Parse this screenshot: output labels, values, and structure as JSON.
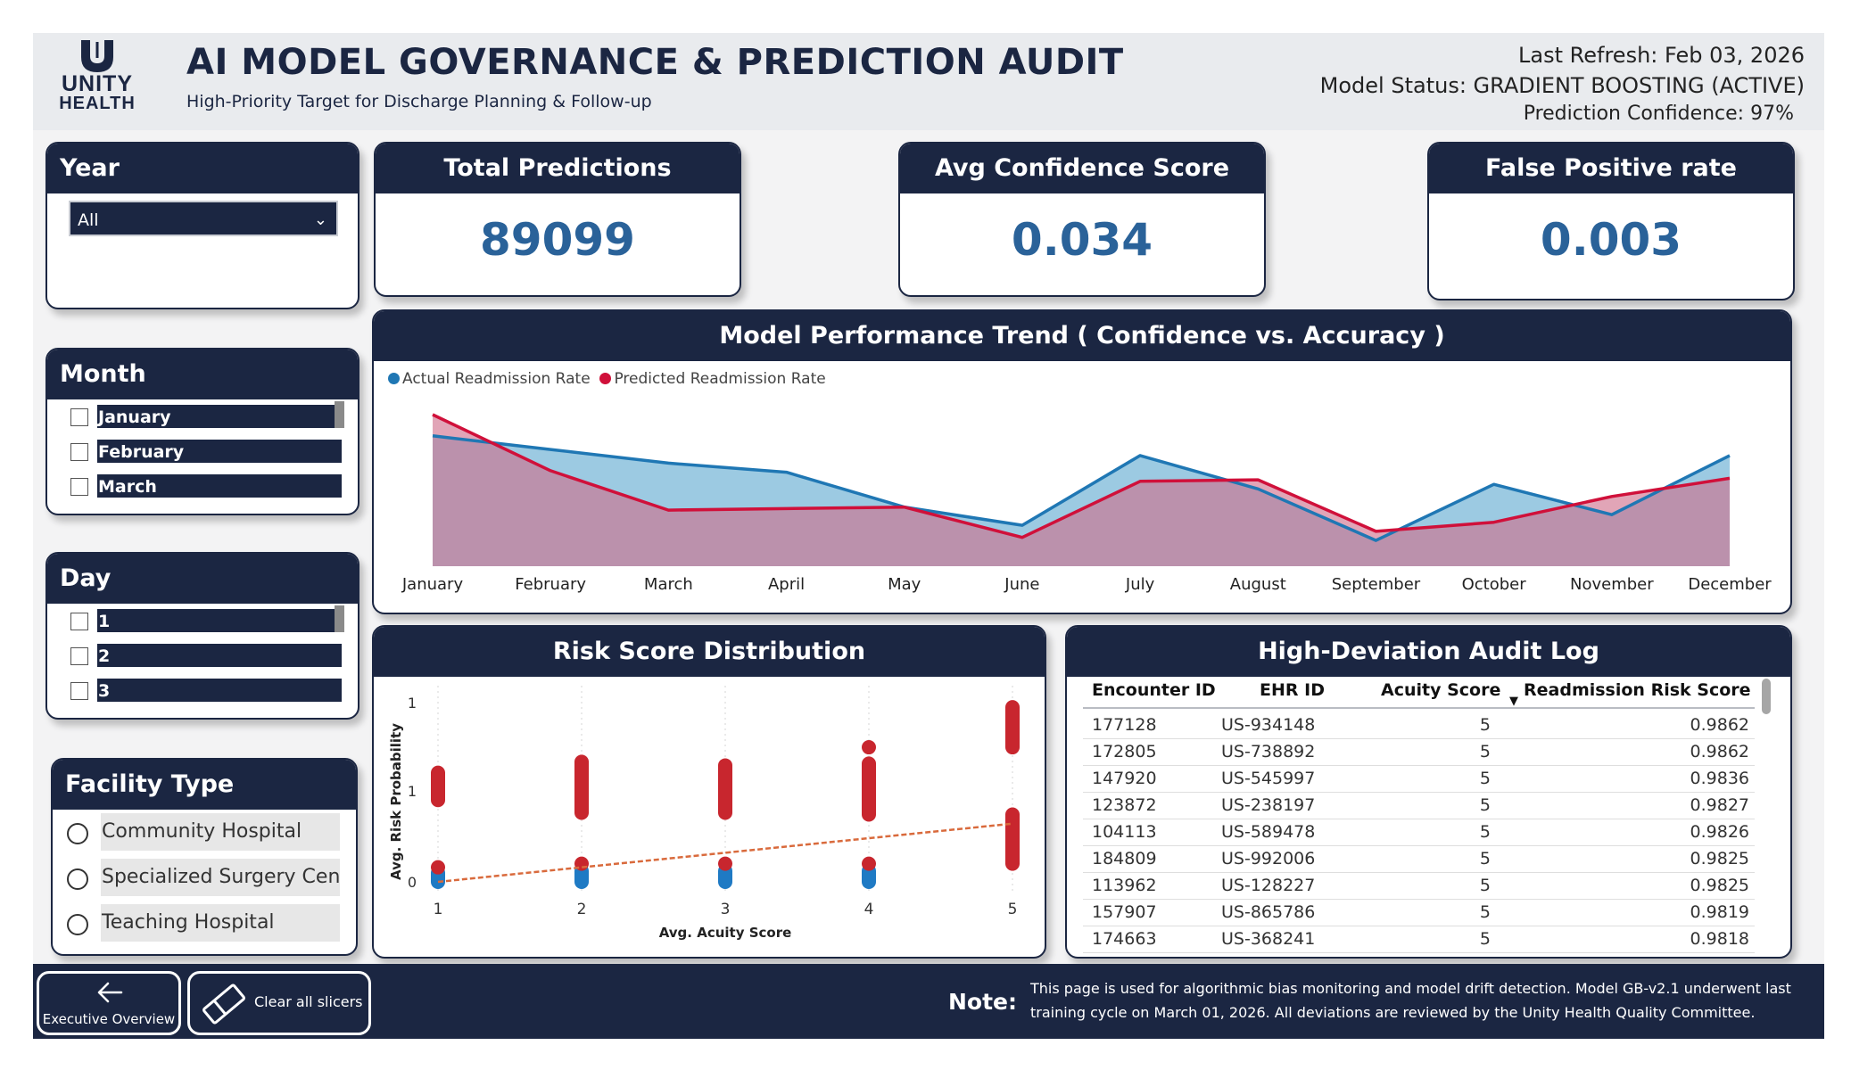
{
  "header": {
    "logo_line1": "UNITY",
    "logo_line2": "HEALTH",
    "title": "AI MODEL GOVERNANCE & PREDICTION AUDIT",
    "subtitle": "High-Priority Target for Discharge Planning & Follow-up",
    "last_refresh": "Last Refresh: Feb 03, 2026",
    "model_status": "Model Status: GRADIENT BOOSTING (ACTIVE)",
    "prediction_confidence": "Prediction Confidence: 97%"
  },
  "kpis": {
    "total_predictions_label": "Total Predictions",
    "total_predictions_value": "89099",
    "avg_confidence_label": "Avg Confidence Score",
    "avg_confidence_value": "0.034",
    "false_positive_label": "False Positive rate",
    "false_positive_value": "0.003"
  },
  "slicers": {
    "year": {
      "label": "Year",
      "selected": "All"
    },
    "month": {
      "label": "Month",
      "items": [
        "January",
        "February",
        "March"
      ]
    },
    "day": {
      "label": "Day",
      "items": [
        "1",
        "2",
        "3"
      ]
    },
    "facility": {
      "label": "Facility Type",
      "items": [
        "Community Hospital",
        "Specialized Surgery Cent...",
        "Teaching Hospital"
      ]
    }
  },
  "trend_chart": {
    "title": "Model Performance Trend ( Confidence vs. Accuracy )",
    "legend": [
      {
        "name": "Actual Readmission Rate",
        "color": "#1f77b4"
      },
      {
        "name": "Predicted Readmission Rate",
        "color": "#d0103a"
      }
    ]
  },
  "chart_data": [
    {
      "type": "area",
      "title": "Model Performance Trend ( Confidence vs. Accuracy )",
      "categories": [
        "January",
        "February",
        "March",
        "April",
        "May",
        "June",
        "July",
        "August",
        "September",
        "October",
        "November",
        "December"
      ],
      "series": [
        {
          "name": "Actual Readmission Rate",
          "values": [
            0.86,
            0.77,
            0.68,
            0.62,
            0.39,
            0.27,
            0.73,
            0.51,
            0.17,
            0.54,
            0.34,
            0.73
          ],
          "color": "#1f77b4"
        },
        {
          "name": "Predicted Readmission Rate",
          "values": [
            1.0,
            0.63,
            0.37,
            0.38,
            0.39,
            0.19,
            0.56,
            0.57,
            0.23,
            0.29,
            0.46,
            0.58
          ],
          "color": "#d0103a"
        }
      ],
      "ylim": [
        0,
        1
      ],
      "grid": false,
      "legend_position": "top-left"
    },
    {
      "type": "scatter",
      "title": "Risk Score Distribution",
      "xlabel": "Avg. Acuity Score",
      "ylabel": "Avg. Risk Probability",
      "x_ticks": [
        "1",
        "2",
        "3",
        "4",
        "5"
      ],
      "y_ticks": [
        "0",
        "1",
        "1"
      ],
      "xlim": [
        1,
        5
      ],
      "ylim": [
        0,
        1.0
      ],
      "series": [
        {
          "name": "high",
          "color": "#c8262e",
          "ranges": [
            [
              1,
              0.45,
              0.6
            ],
            [
              2,
              0.38,
              0.66
            ],
            [
              3,
              0.38,
              0.64
            ],
            [
              4,
              0.37,
              0.65
            ],
            [
              5,
              0.74,
              0.96
            ],
            [
              5,
              0.1,
              0.37
            ]
          ],
          "points": [
            [
              1,
              0.08
            ],
            [
              2,
              0.1
            ],
            [
              3,
              0.1
            ],
            [
              4,
              0.1
            ],
            [
              4,
              0.74
            ]
          ]
        },
        {
          "name": "low",
          "color": "#1f7ac4",
          "ranges": [
            [
              1,
              0.0,
              0.05
            ],
            [
              2,
              0.0,
              0.06
            ],
            [
              3,
              0.0,
              0.06
            ],
            [
              4,
              0.0,
              0.06
            ]
          ],
          "points": []
        }
      ],
      "trendline": {
        "x": [
          1,
          5
        ],
        "y": [
          0.0,
          0.32
        ],
        "color": "#d96a3c"
      }
    }
  ],
  "scatter_chart": {
    "title": "Risk Score Distribution",
    "xlabel": "Avg. Acuity Score",
    "ylabel": "Avg. Risk Probability",
    "x_ticks": [
      "1",
      "2",
      "3",
      "4",
      "5"
    ],
    "y_ticks": [
      "0",
      "1",
      "1"
    ]
  },
  "audit_log": {
    "title": "High-Deviation Audit Log",
    "columns": [
      "Encounter ID",
      "EHR ID",
      "Acuity Score",
      "Readmission Risk Score"
    ],
    "rows": [
      [
        "177128",
        "US-934148",
        "5",
        "0.9862"
      ],
      [
        "172805",
        "US-738892",
        "5",
        "0.9862"
      ],
      [
        "147920",
        "US-545997",
        "5",
        "0.9836"
      ],
      [
        "123872",
        "US-238197",
        "5",
        "0.9827"
      ],
      [
        "104113",
        "US-589478",
        "5",
        "0.9826"
      ],
      [
        "184809",
        "US-992006",
        "5",
        "0.9825"
      ],
      [
        "113962",
        "US-128227",
        "5",
        "0.9825"
      ],
      [
        "157907",
        "US-865786",
        "5",
        "0.9819"
      ],
      [
        "174663",
        "US-368241",
        "5",
        "0.9818"
      ]
    ]
  },
  "footer": {
    "exec_button": "Executive Overview",
    "clear_button": "Clear all slicers",
    "note_label": "Note:",
    "note_text": "This page is used for algorithmic bias monitoring and model drift detection. Model GB-v2.1 underwent last training cycle on March 01, 2026. All deviations are reviewed by the Unity Health Quality Committee."
  }
}
